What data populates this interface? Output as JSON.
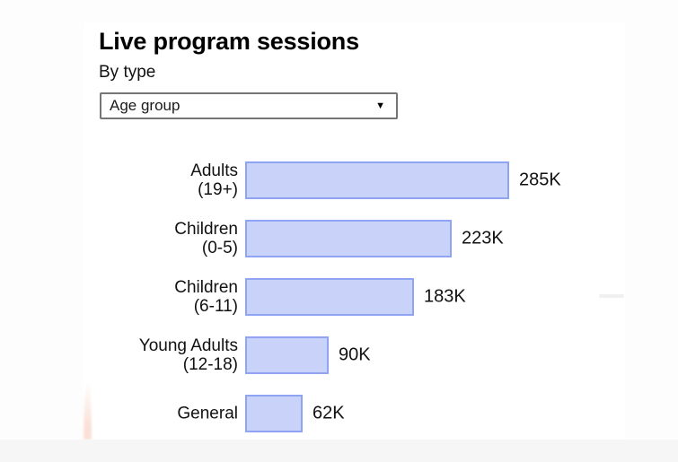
{
  "colors": {
    "page_background": "#fdfdfd",
    "card_background": "#ffffff",
    "bottom_band": "#f6f6f6",
    "bar_fill": "#c9d2f8",
    "bar_border": "#8fa4f2"
  },
  "header": {
    "title": "Live program sessions",
    "subtitle": "By type"
  },
  "filter": {
    "selected": "Age group",
    "arrow_icon": "▼"
  },
  "chart_data": {
    "type": "bar",
    "orientation": "horizontal",
    "title": "Live program sessions",
    "subtitle": "By type",
    "filter_label": "Age group",
    "categories": [
      "Adults (19+)",
      "Children (0-5)",
      "Children (6-11)",
      "Young Adults (12-18)",
      "General"
    ],
    "category_label_lines": [
      [
        "Adults",
        "(19+)"
      ],
      [
        "Children",
        "(0-5)"
      ],
      [
        "Children",
        "(6-11)"
      ],
      [
        "Young Adults",
        "(12-18)"
      ],
      [
        "General"
      ]
    ],
    "values": [
      285000,
      223000,
      183000,
      90000,
      62000
    ],
    "values_k": [
      285,
      223,
      183,
      90,
      62
    ],
    "value_labels": [
      "285K",
      "223K",
      "183K",
      "90K",
      "62K"
    ],
    "xlim_k": [
      0,
      300
    ],
    "grid": false,
    "legend": false,
    "bar_fill": "#c9d2f8",
    "bar_border": "#8fa4f2"
  }
}
